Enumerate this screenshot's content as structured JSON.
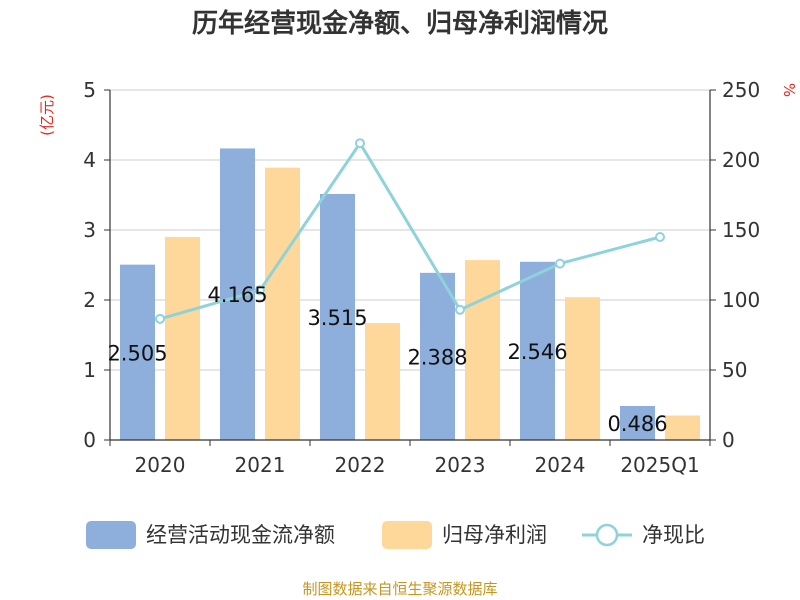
{
  "chart_data": {
    "type": "bar",
    "title": "历年经营现金净额、归母净利润情况",
    "categories": [
      "2020",
      "2021",
      "2022",
      "2023",
      "2024",
      "2025Q1"
    ],
    "y_left": {
      "unit": "(亿元)",
      "min": 0,
      "max": 5,
      "ticks": [
        "0",
        "1",
        "2",
        "3",
        "4",
        "5"
      ]
    },
    "y_right": {
      "unit": "%",
      "min": 0,
      "max": 250,
      "ticks": [
        "0",
        "50",
        "100",
        "150",
        "200",
        "250"
      ]
    },
    "series": [
      {
        "name": "经营活动现金流净额",
        "type": "bar",
        "axis": "left",
        "color": "#8eaedc",
        "values": [
          2.505,
          4.165,
          3.515,
          2.388,
          2.546,
          0.486
        ],
        "labels": [
          "2.505",
          "4.165",
          "3.515",
          "2.388",
          "2.546",
          "0.486"
        ]
      },
      {
        "name": "归母净利润",
        "type": "bar",
        "axis": "left",
        "color": "#fed89a",
        "values": [
          2.9,
          3.89,
          1.67,
          2.57,
          2.04,
          0.35
        ]
      },
      {
        "name": "净现比",
        "type": "line",
        "axis": "right",
        "color": "#8dd3d9",
        "values": [
          86.5,
          107,
          212,
          93,
          126,
          145
        ]
      }
    ],
    "grid": true,
    "legend_position": "bottom"
  },
  "source": "制图数据来自恒生聚源数据库"
}
